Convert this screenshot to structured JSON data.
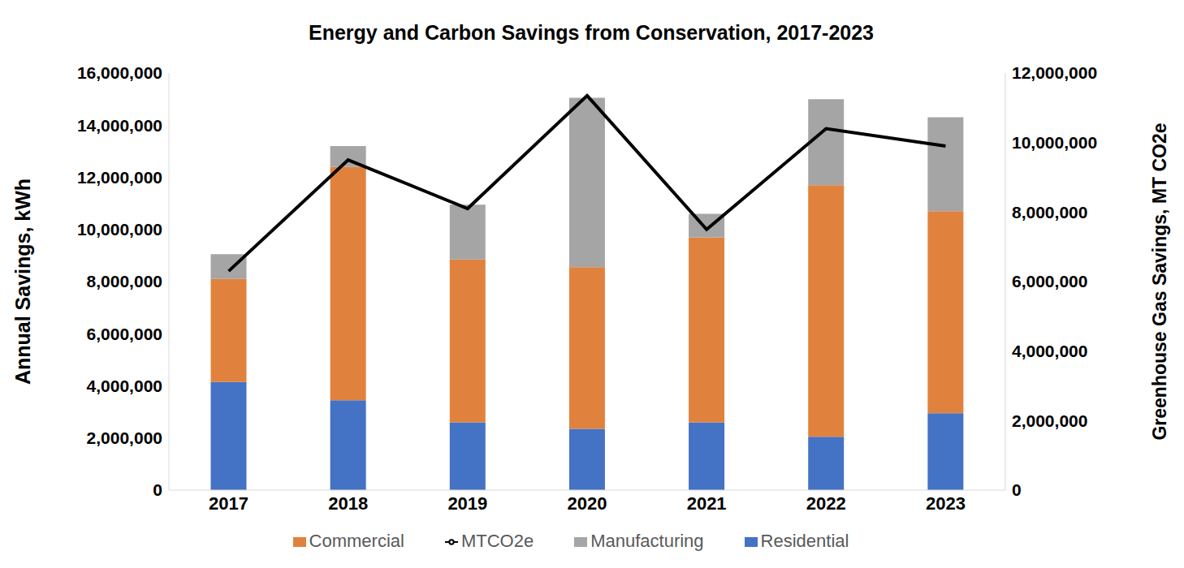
{
  "chart_data": {
    "type": "bar",
    "title": "Energy and Carbon Savings from Conservation, 2017-2023",
    "stacked": true,
    "grid": false,
    "legend": "bottom",
    "categories": [
      "2017",
      "2018",
      "2019",
      "2020",
      "2021",
      "2022",
      "2023"
    ],
    "y_label": "Annual Savings, kWh",
    "y2_label": "Greenhouse Gas Savings, MT CO2e",
    "ylim": [
      0,
      16000000
    ],
    "yticks": [
      0,
      {
        "value": 2000000,
        "label": "2,000,000"
      },
      {
        "value": 4000000,
        "label": "4,000,000"
      },
      {
        "value": 6000000,
        "label": "6,000,000"
      },
      {
        "value": 8000000,
        "label": "8,000,000"
      },
      {
        "value": 10000000,
        "label": "10,000,000"
      },
      {
        "value": 12000000,
        "label": "12,000,000"
      },
      {
        "value": 14000000,
        "label": "14,000,000"
      },
      {
        "value": 16000000,
        "label": "16,000,000"
      }
    ],
    "y2lim": [
      0,
      12000000
    ],
    "y2ticks": [
      0,
      {
        "value": 2000000,
        "label": "2,000,000"
      },
      {
        "value": 4000000,
        "label": "4,000,000"
      },
      {
        "value": 6000000,
        "label": "6,000,000"
      },
      {
        "value": 8000000,
        "label": "8,000,000"
      },
      {
        "value": 10000000,
        "label": "10,000,000"
      },
      {
        "value": 12000000,
        "label": "12,000,000"
      }
    ],
    "series": [
      {
        "name": "Residential",
        "type": "bar",
        "color": "#4472c4",
        "values": [
          4150000,
          3450000,
          2600000,
          2350000,
          2600000,
          2050000,
          2950000
        ]
      },
      {
        "name": "Commercial",
        "type": "bar",
        "color": "#e0823e",
        "values": [
          3950000,
          8950000,
          6250000,
          6200000,
          7100000,
          9650000,
          7750000
        ]
      },
      {
        "name": "Manufacturing",
        "type": "bar",
        "color": "#a5a5a5",
        "values": [
          950000,
          800000,
          2100000,
          6500000,
          900000,
          3300000,
          3600000
        ]
      },
      {
        "name": "MTCO2e",
        "type": "line",
        "axis": "y2",
        "color": "#000000",
        "values": [
          6300000,
          9500000,
          8100000,
          11350000,
          7500000,
          10400000,
          9900000
        ]
      }
    ]
  }
}
